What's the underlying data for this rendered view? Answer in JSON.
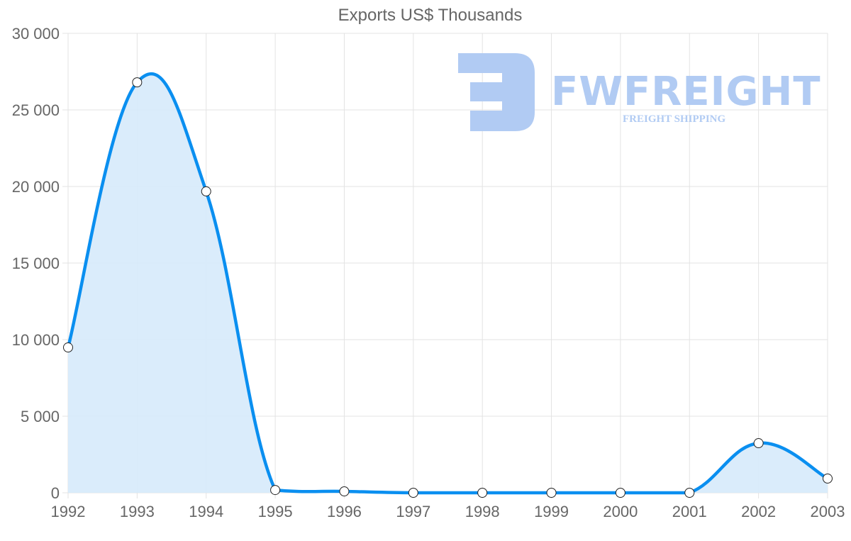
{
  "chart_data": {
    "type": "area",
    "title": "Exports US$ Thousands",
    "xlabel": "",
    "ylabel": "",
    "categories": [
      "1992",
      "1993",
      "1994",
      "1995",
      "1996",
      "1997",
      "1998",
      "1999",
      "2000",
      "2001",
      "2002",
      "2003"
    ],
    "series": [
      {
        "name": "Exports US$ Thousands",
        "values": [
          9490,
          26800,
          19680,
          180,
          90,
          0,
          0,
          0,
          0,
          0,
          3240,
          930
        ]
      }
    ],
    "ylim": [
      0,
      30000
    ],
    "yticks": [
      "0",
      "5 000",
      "10 000",
      "15 000",
      "20 000",
      "25 000",
      "30 000"
    ],
    "grid": true,
    "legend": "none",
    "colors": {
      "line": "#0a8ff0",
      "fill": "#d6eafb",
      "grid": "#e3e3e3",
      "text": "#666666"
    }
  },
  "watermark": {
    "brand": "FWFREIGHT",
    "tagline": "FREIGHT SHIPPING"
  }
}
